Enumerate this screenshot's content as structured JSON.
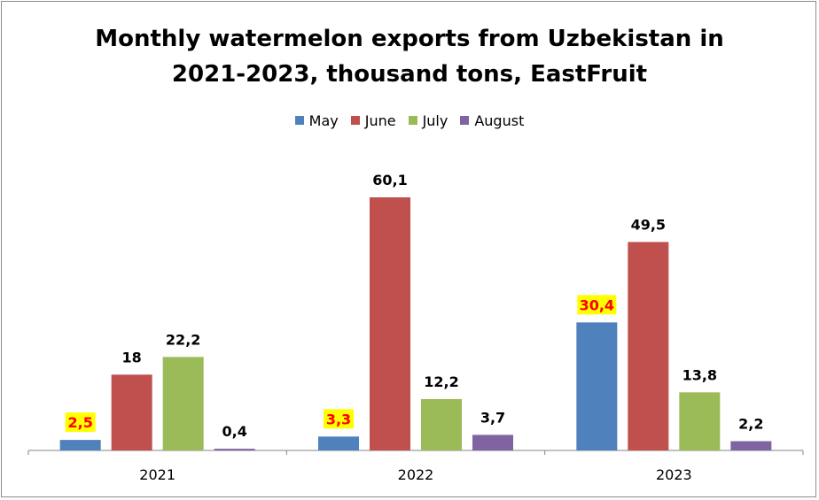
{
  "chart_data": {
    "type": "bar",
    "title": "Monthly watermelon exports from Uzbekistan in\n2021-2023, thousand tons, EastFruit",
    "categories": [
      "2021",
      "2022",
      "2023"
    ],
    "series": [
      {
        "name": "May",
        "values": [
          2.5,
          3.3,
          30.4
        ],
        "labels": [
          "2,5",
          "3,3",
          "30,4"
        ],
        "color": "#4F81BD",
        "highlight_labels": true
      },
      {
        "name": "June",
        "values": [
          18,
          60.1,
          49.5
        ],
        "labels": [
          "18",
          "60,1",
          "49,5"
        ],
        "color": "#C0504D",
        "highlight_labels": false
      },
      {
        "name": "July",
        "values": [
          22.2,
          12.2,
          13.8
        ],
        "labels": [
          "22,2",
          "12,2",
          "13,8"
        ],
        "color": "#9BBB59",
        "highlight_labels": false
      },
      {
        "name": "August",
        "values": [
          0.4,
          3.7,
          2.2
        ],
        "labels": [
          "0,4",
          "3,7",
          "2,2"
        ],
        "color": "#8064A2",
        "highlight_labels": false
      }
    ],
    "xlabel": "",
    "ylabel": "",
    "ylim": [
      0,
      60.1
    ],
    "grid": false,
    "legend": "top-center",
    "label_highlight": {
      "background": "#FFFF00",
      "text_color": "#FF0000"
    }
  }
}
